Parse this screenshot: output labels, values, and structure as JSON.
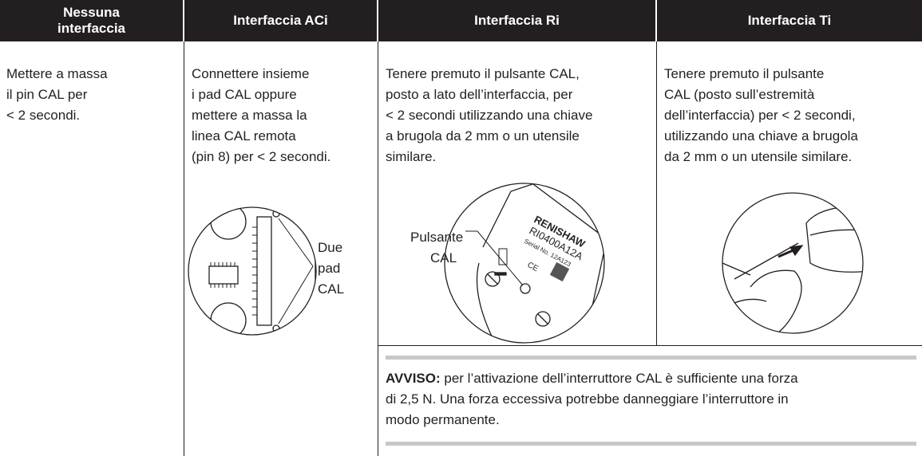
{
  "header": {
    "columns": [
      {
        "lines": [
          "Nessuna",
          "interfaccia"
        ]
      },
      {
        "lines": [
          "Interfaccia ACi"
        ]
      },
      {
        "lines": [
          "Interfaccia Ri"
        ]
      },
      {
        "lines": [
          "Interfaccia Ti"
        ]
      }
    ]
  },
  "cells": [
    {
      "lines": [
        "Mettere a massa",
        "il pin CAL per",
        "< 2 secondi."
      ]
    },
    {
      "lines": [
        "Connettere insieme",
        "i pad CAL oppure",
        "mettere a massa la",
        "linea CAL remota",
        "(pin 8) per < 2 secondi."
      ]
    },
    {
      "lines": [
        "Tenere premuto il pulsante CAL,",
        "posto a lato dell’interfaccia, per",
        "< 2 secondi utilizzando una chiave",
        "a brugola da 2 mm o un utensile",
        "similare."
      ]
    },
    {
      "lines": [
        "Tenere premuto il pulsante",
        "CAL (posto sull’estremità",
        "dell’interfaccia) per < 2 secondi,",
        "utilizzando una chiave a brugola",
        "da 2 mm o un utensile similare."
      ]
    }
  ],
  "figures": {
    "aci": {
      "label": [
        "Due",
        "pad",
        "CAL"
      ]
    },
    "ri": {
      "label": [
        "Pulsante",
        "CAL"
      ],
      "brand": "RENISHAW",
      "model": "RI0400A12A",
      "serial": "Serial No. 12A123",
      "mark": "CE"
    }
  },
  "notice": {
    "lead": "AVVISO:",
    "lines": [
      "per l’attivazione dell’interruttore CAL è sufficiente una forza",
      "di 2,5 N. Una forza eccessiva potrebbe danneggiare l’interruttore in",
      "modo permanente."
    ]
  }
}
